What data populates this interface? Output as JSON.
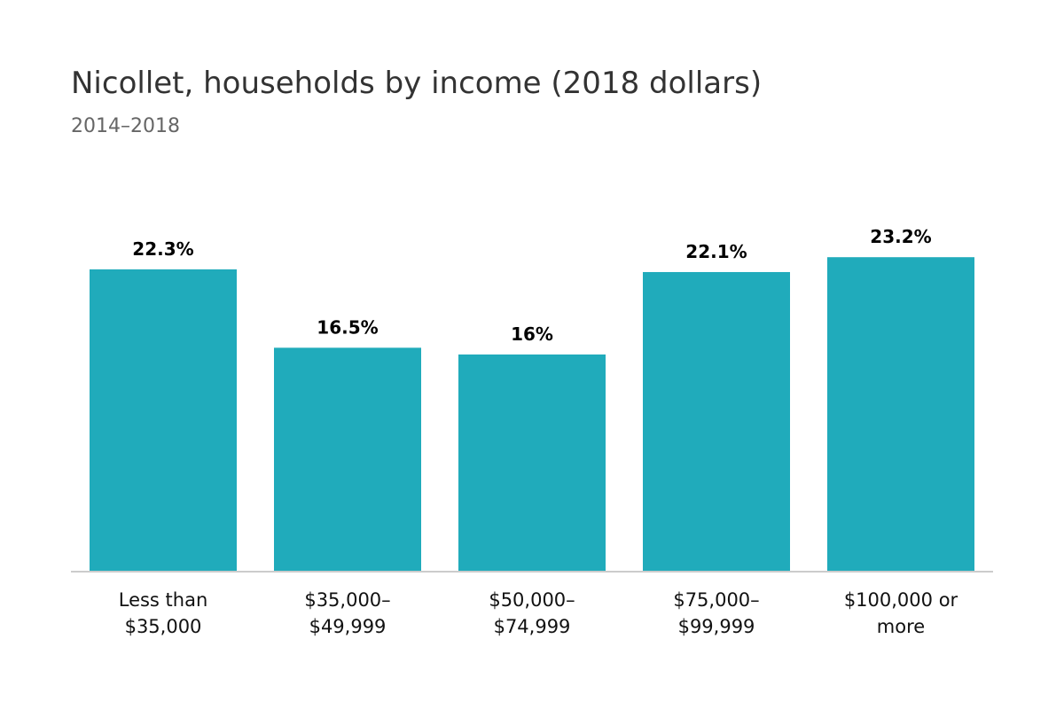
{
  "chart_data": {
    "type": "bar",
    "title": "Nicollet, households by income (2018 dollars)",
    "subtitle": "2014–2018",
    "categories": [
      [
        "Less than",
        "$35,000"
      ],
      [
        "$35,000–",
        "$49,999"
      ],
      [
        "$50,000–",
        "$74,999"
      ],
      [
        "$75,000–",
        "$99,999"
      ],
      [
        "$100,000 or",
        "more"
      ]
    ],
    "values": [
      22.3,
      16.5,
      16,
      22.1,
      23.2
    ],
    "data_labels": [
      "22.3%",
      "16.5%",
      "16%",
      "22.1%",
      "23.2%"
    ],
    "ylim": [
      0,
      25
    ],
    "grid": false,
    "legend": "none",
    "bar_color": "#20ABBB",
    "axis_color": "#CCCCCC"
  }
}
